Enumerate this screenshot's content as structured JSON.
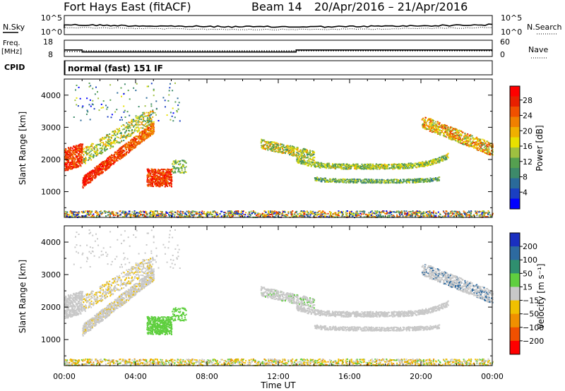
{
  "header": {
    "title": "Fort Hays East (fitACF)",
    "beam": "Beam 14",
    "dates": "20/Apr/2016 – 21/Apr/2016"
  },
  "panels": {
    "nsky_label": "N.Sky",
    "nsky_ticks": [
      "10^5",
      "10^0"
    ],
    "nsearch_label": "N.Search",
    "freq_label": "Freq.",
    "freq_unit": "[MHz]",
    "freq_ticks": [
      "18",
      "8"
    ],
    "nave_ticks": [
      "60",
      "0"
    ],
    "nave_label": "Nave",
    "cpid_label": "CPID",
    "cpid_value": "normal (fast) 151 IF"
  },
  "chart_data": [
    {
      "type": "heatmap",
      "name": "power",
      "ylabel": "Slant Range [km]",
      "xlabel": "Time UT",
      "x_ticks": [
        "00:00",
        "04:00",
        "08:00",
        "12:00",
        "16:00",
        "20:00",
        "00:00"
      ],
      "y_ticks": [
        "1000",
        "2000",
        "3000",
        "4000"
      ],
      "ylim": [
        200,
        4500
      ],
      "xlim_hours": [
        0,
        24
      ],
      "colorbar": {
        "label": "Power [dB]",
        "ticks": [
          "4",
          "8",
          "12",
          "16",
          "20",
          "24",
          "28"
        ],
        "colors": [
          "#0000ff",
          "#1a3fc2",
          "#2a6a9a",
          "#3d8a6a",
          "#55a050",
          "#9ec040",
          "#e8e000",
          "#f0b000",
          "#f08000",
          "#f05000",
          "#e82000",
          "#ff0000"
        ]
      }
    },
    {
      "type": "heatmap",
      "name": "velocity",
      "ylabel": "Slant Range [km]",
      "xlabel": "Time UT",
      "x_ticks": [
        "00:00",
        "04:00",
        "08:00",
        "12:00",
        "16:00",
        "20:00",
        "00:00"
      ],
      "y_ticks": [
        "1000",
        "2000",
        "3000",
        "4000"
      ],
      "ylim": [
        200,
        4500
      ],
      "xlim_hours": [
        0,
        24
      ],
      "colorbar": {
        "label": "Velocity [m s⁻¹]",
        "ticks": [
          "200",
          "100",
          "50",
          "15",
          "−15",
          "−50",
          "−100",
          "−200"
        ],
        "colors": [
          "#1a2fc0",
          "#2d6aa0",
          "#2f8f6f",
          "#5fcf3f",
          "#c8c8c8",
          "#f0c000",
          "#f09000",
          "#f05000",
          "#ff0000"
        ]
      }
    }
  ],
  "xaxis": {
    "label": "Time UT"
  }
}
